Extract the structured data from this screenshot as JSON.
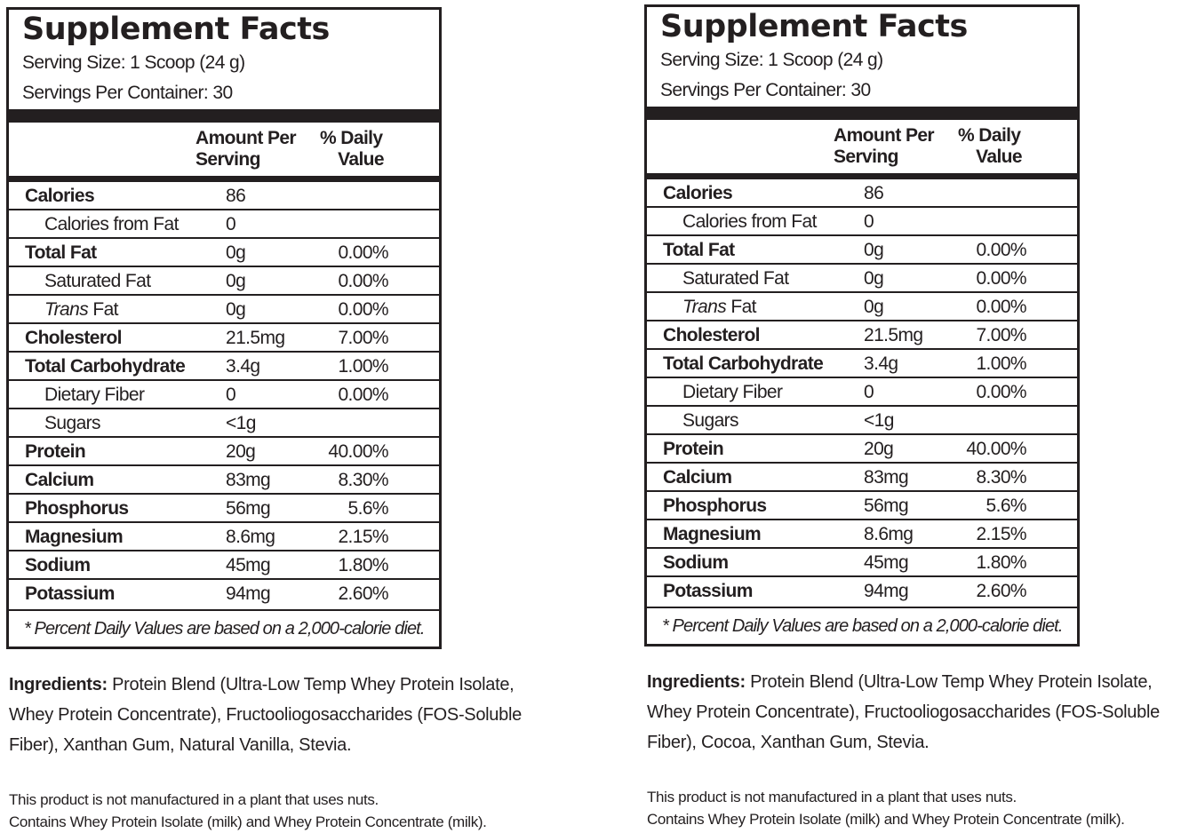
{
  "panels": [
    {
      "title": "Supplement Facts",
      "serving_size": "Serving Size:  1 Scoop (24 g)",
      "servings_per_container": "Servings Per Container:  30",
      "header": {
        "amount_line1": "Amount Per",
        "amount_line2": "Serving",
        "dv_line1": "% Daily",
        "dv_line2": "Value"
      },
      "rows": [
        {
          "name": "Calories",
          "amount": "86",
          "dv": "",
          "bold": true
        },
        {
          "name": "Calories from Fat",
          "amount": "0",
          "dv": "",
          "sub": true
        },
        {
          "name": "Total Fat",
          "amount": "0g",
          "dv": "0.00%",
          "bold": true
        },
        {
          "name": "Saturated Fat",
          "amount": "0g",
          "dv": "0.00%",
          "sub": true
        },
        {
          "name_italic": "Trans",
          "name": " Fat",
          "amount": "0g",
          "dv": "0.00%",
          "sub": true
        },
        {
          "name": "Cholesterol",
          "amount": "21.5mg",
          "dv": "7.00%",
          "bold": true
        },
        {
          "name": "Total Carbohydrate",
          "amount": "3.4g",
          "dv": "1.00%",
          "bold": true
        },
        {
          "name": "Dietary Fiber",
          "amount": "0",
          "dv": "0.00%",
          "sub": true
        },
        {
          "name": "Sugars",
          "amount": "<1g",
          "dv": "",
          "sub": true
        },
        {
          "name": "Protein",
          "amount": "20g",
          "dv": "40.00%",
          "bold": true
        },
        {
          "name": "Calcium",
          "amount": "83mg",
          "dv": "8.30%",
          "bold": true
        },
        {
          "name": "Phosphorus",
          "amount": "56mg",
          "dv": "5.6%",
          "bold": true
        },
        {
          "name": "Magnesium",
          "amount": "8.6mg",
          "dv": "2.15%",
          "bold": true
        },
        {
          "name": "Sodium",
          "amount": "45mg",
          "dv": "1.80%",
          "bold": true
        },
        {
          "name": "Potassium",
          "amount": "94mg",
          "dv": "2.60%",
          "bold": true
        }
      ],
      "footnote": "* Percent Daily Values are based on a 2,000-calorie diet.",
      "ingredients_label": "Ingredients:",
      "ingredients_line1": " Protein Blend (Ultra-Low Temp Whey Protein Isolate,",
      "ingredients_line2": "Whey Protein Concentrate), Fructooliogosaccharides (FOS-Soluble",
      "ingredients_line3": "Fiber),  Xanthan Gum, Natural Vanilla, Stevia.",
      "note1": "This product is not manufactured in a plant that uses nuts.",
      "note2": "Contains Whey Protein Isolate (milk) and Whey Protein Concentrate (milk)."
    },
    {
      "title": "Supplement Facts",
      "serving_size": "Serving Size:  1 Scoop (24 g)",
      "servings_per_container": "Servings Per Container:  30",
      "header": {
        "amount_line1": "Amount Per",
        "amount_line2": "Serving",
        "dv_line1": "% Daily",
        "dv_line2": "Value"
      },
      "rows": [
        {
          "name": "Calories",
          "amount": "86",
          "dv": "",
          "bold": true
        },
        {
          "name": "Calories from Fat",
          "amount": "0",
          "dv": "",
          "sub": true
        },
        {
          "name": "Total Fat",
          "amount": "0g",
          "dv": "0.00%",
          "bold": true
        },
        {
          "name": "Saturated Fat",
          "amount": "0g",
          "dv": "0.00%",
          "sub": true
        },
        {
          "name_italic": "Trans",
          "name": " Fat",
          "amount": "0g",
          "dv": "0.00%",
          "sub": true
        },
        {
          "name": "Cholesterol",
          "amount": "21.5mg",
          "dv": "7.00%",
          "bold": true
        },
        {
          "name": "Total Carbohydrate",
          "amount": "3.4g",
          "dv": "1.00%",
          "bold": true
        },
        {
          "name": "Dietary Fiber",
          "amount": "0",
          "dv": "0.00%",
          "sub": true
        },
        {
          "name": "Sugars",
          "amount": "<1g",
          "dv": "",
          "sub": true
        },
        {
          "name": "Protein",
          "amount": "20g",
          "dv": "40.00%",
          "bold": true
        },
        {
          "name": "Calcium",
          "amount": "83mg",
          "dv": "8.30%",
          "bold": true
        },
        {
          "name": "Phosphorus",
          "amount": "56mg",
          "dv": "5.6%",
          "bold": true
        },
        {
          "name": "Magnesium",
          "amount": "8.6mg",
          "dv": "2.15%",
          "bold": true
        },
        {
          "name": "Sodium",
          "amount": "45mg",
          "dv": "1.80%",
          "bold": true
        },
        {
          "name": "Potassium",
          "amount": "94mg",
          "dv": "2.60%",
          "bold": true
        }
      ],
      "footnote": "* Percent Daily Values are based on a 2,000-calorie diet.",
      "ingredients_label": "Ingredients:",
      "ingredients_line1": " Protein Blend (Ultra-Low Temp Whey Protein Isolate,",
      "ingredients_line2": "Whey Protein Concentrate), Fructooliogosaccharides (FOS-Soluble",
      "ingredients_line3": "Fiber), Cocoa, Xanthan Gum, Stevia.",
      "note1": "This product is not manufactured in a plant that uses nuts.",
      "note2": "Contains Whey Protein Isolate (milk) and Whey Protein Concentrate (milk)."
    }
  ]
}
